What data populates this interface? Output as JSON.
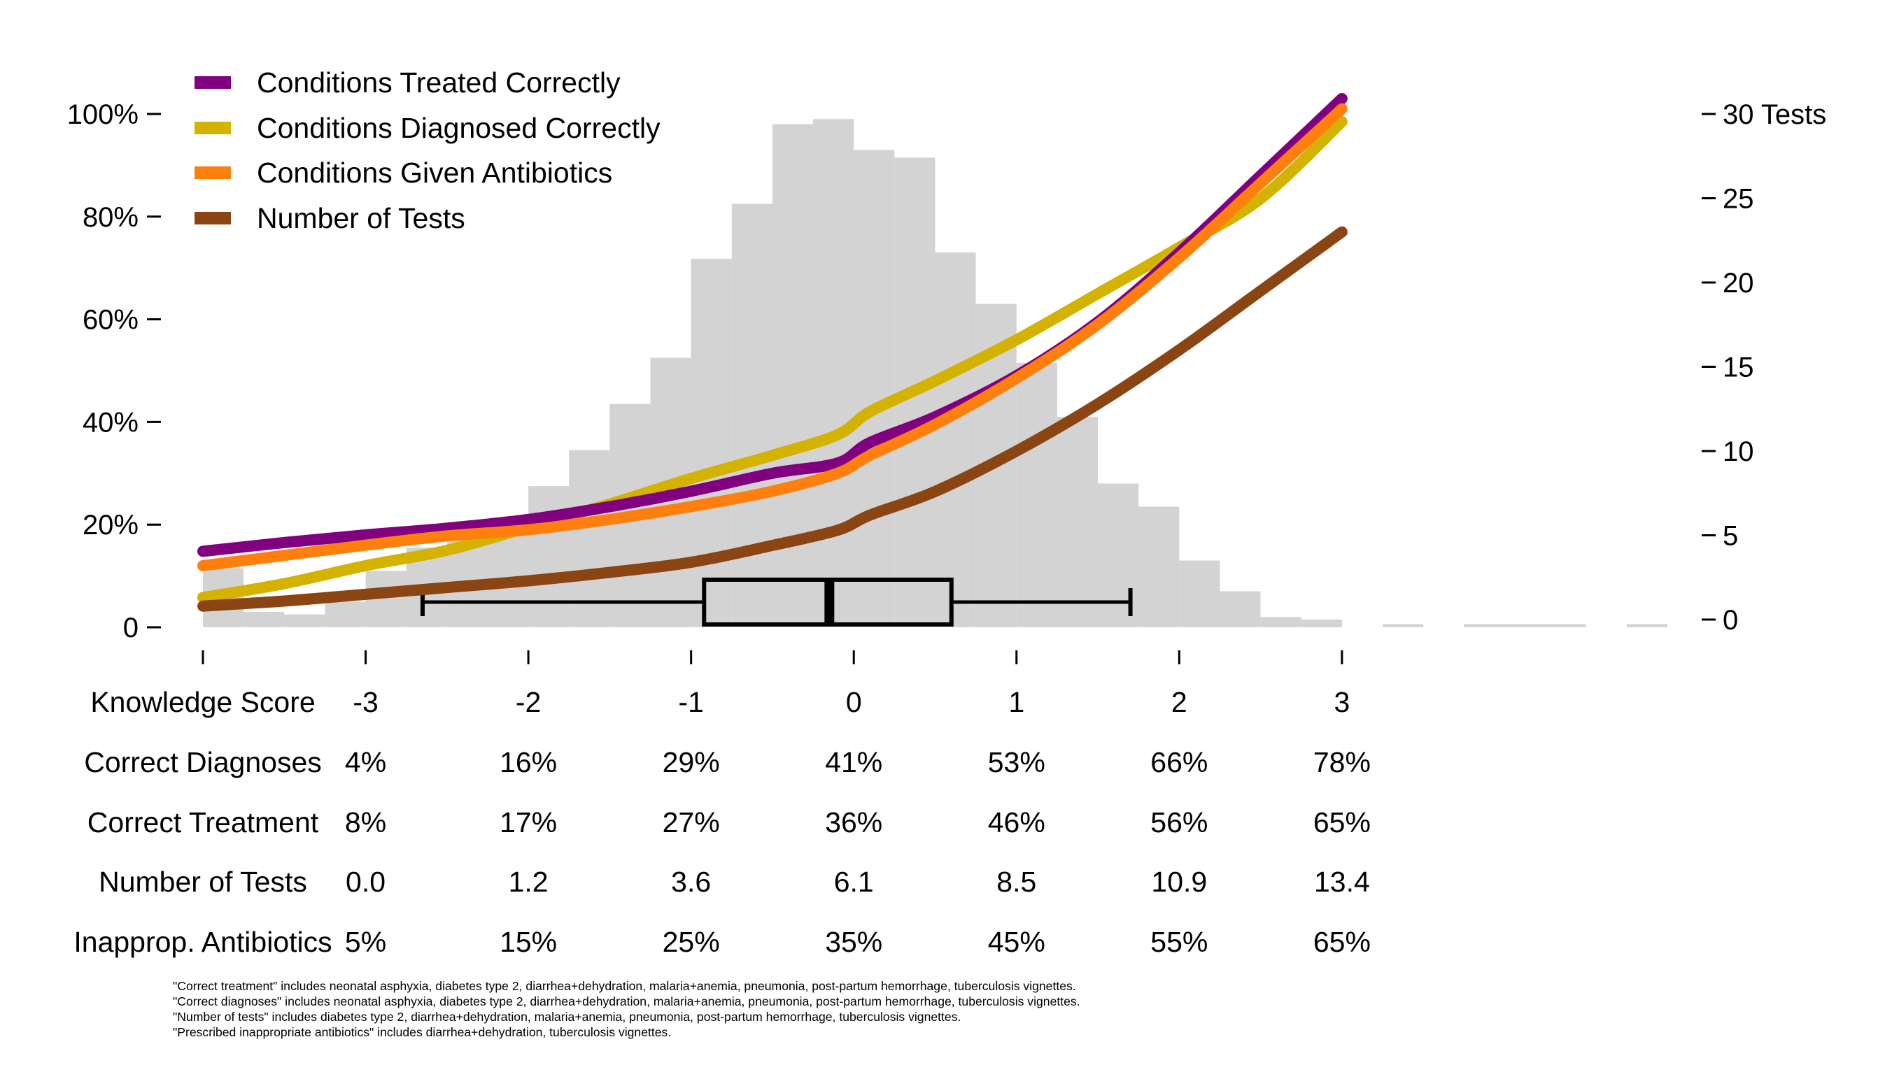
{
  "colors": {
    "treated": "#800080",
    "diagnosed": "#D4B200",
    "antibiotics": "#FF7F0E",
    "tests": "#8B4513",
    "histogram": "#D3D3D3",
    "boxplot": "#000000"
  },
  "chart_data": {
    "type": "line",
    "title": "",
    "xlabel": "Knowledge Score",
    "xlim": [
      -4,
      5
    ],
    "ylim_left": [
      0,
      100
    ],
    "ylim_right": [
      0,
      30
    ],
    "left_ticks": [
      "0",
      "20%",
      "40%",
      "60%",
      "80%",
      "100%"
    ],
    "left_tick_values": [
      0,
      20,
      40,
      60,
      80,
      100
    ],
    "right_ticks": [
      "0",
      "5",
      "10",
      "15",
      "20",
      "25",
      "30 Tests"
    ],
    "right_tick_values": [
      0,
      5,
      10,
      15,
      20,
      25,
      30
    ],
    "x_ticks": [
      "",
      "-3",
      "-2",
      "-1",
      "0",
      "1",
      "2",
      "3"
    ],
    "x_tick_values": [
      -4,
      -3,
      -2,
      -1,
      0,
      1,
      2,
      3
    ],
    "legend": {
      "position": "top-left",
      "entries": [
        "Conditions Treated Correctly",
        "Conditions Diagnosed Correctly",
        "Conditions Given Antibiotics",
        "Number of Tests"
      ]
    },
    "histogram": {
      "bin_width": 0.25,
      "bin_starts": [
        -4.0,
        -3.75,
        -3.5,
        -3.25,
        -3.0,
        -2.75,
        -2.5,
        -2.25,
        -2.0,
        -1.75,
        -1.5,
        -1.25,
        -1.0,
        -0.75,
        -0.5,
        -0.25,
        0.0,
        0.25,
        0.5,
        0.75,
        1.0,
        1.25,
        1.5,
        1.75,
        2.0,
        2.25,
        2.5,
        2.75,
        3.25,
        3.75,
        4.0,
        4.25,
        4.75
      ],
      "heights_percent": [
        11.5,
        3.0,
        2.5,
        5.0,
        11.0,
        15.5,
        17.5,
        21.0,
        27.5,
        34.5,
        43.5,
        52.5,
        71.8,
        82.5,
        98.0,
        99.0,
        93.0,
        91.5,
        73.0,
        63.0,
        51.5,
        41.0,
        28.0,
        23.5,
        13.0,
        7.0,
        2.0,
        1.5,
        0.6,
        0.6,
        0.6,
        0.6,
        0.6
      ]
    },
    "boxplot": {
      "whisker_low": -2.65,
      "q1": -0.92,
      "median": -0.15,
      "q3": 0.6,
      "whisker_high": 1.7
    },
    "series": [
      {
        "name": "Conditions Treated Correctly",
        "axis": "left",
        "x": [
          -4.0,
          -3.5,
          -3.0,
          -2.5,
          -2.0,
          -1.5,
          -1.0,
          -0.5,
          -0.1,
          0.1,
          0.5,
          1.0,
          1.5,
          2.0,
          2.5,
          3.0
        ],
        "y": [
          14.8,
          16.5,
          18.0,
          19.3,
          21.0,
          23.5,
          26.5,
          30.0,
          32.0,
          36.0,
          41.0,
          49.0,
          59.5,
          73.0,
          88.0,
          103.0
        ]
      },
      {
        "name": "Conditions Diagnosed Correctly",
        "axis": "left",
        "x": [
          -4.0,
          -3.5,
          -3.0,
          -2.5,
          -2.0,
          -1.5,
          -1.0,
          -0.5,
          -0.1,
          0.1,
          0.5,
          1.0,
          1.5,
          2.0,
          2.5,
          3.0
        ],
        "y": [
          5.8,
          8.5,
          12.0,
          15.0,
          19.5,
          24.0,
          29.0,
          33.5,
          37.5,
          42.0,
          48.0,
          56.0,
          65.0,
          74.0,
          83.5,
          98.5
        ]
      },
      {
        "name": "Conditions Given Antibiotics",
        "axis": "left",
        "x": [
          -4.0,
          -3.5,
          -3.0,
          -2.5,
          -2.0,
          -1.5,
          -1.0,
          -0.5,
          -0.1,
          0.1,
          0.5,
          1.0,
          1.5,
          2.0,
          2.5,
          3.0
        ],
        "y": [
          12.0,
          14.0,
          16.0,
          17.8,
          19.0,
          21.0,
          23.5,
          26.5,
          30.0,
          33.5,
          39.5,
          48.5,
          59.0,
          72.0,
          86.5,
          101.0
        ]
      },
      {
        "name": "Number of Tests",
        "axis": "right",
        "x": [
          -4.0,
          -3.5,
          -3.0,
          -2.5,
          -2.0,
          -1.5,
          -1.0,
          -0.5,
          -0.1,
          0.1,
          0.5,
          1.0,
          1.5,
          2.0,
          2.5,
          3.0
        ],
        "y": [
          0.8,
          1.1,
          1.5,
          1.9,
          2.3,
          2.8,
          3.4,
          4.4,
          5.3,
          6.2,
          7.6,
          10.0,
          12.8,
          16.0,
          19.5,
          23.0
        ]
      }
    ],
    "table": {
      "columns": [
        "-3",
        "-2",
        "-1",
        "0",
        "1",
        "2",
        "3"
      ],
      "rows": [
        {
          "label": "Knowledge Score",
          "values": [
            "-3",
            "-2",
            "-1",
            "0",
            "1",
            "2",
            "3"
          ]
        },
        {
          "label": "Correct Diagnoses",
          "values": [
            "4%",
            "16%",
            "29%",
            "41%",
            "53%",
            "66%",
            "78%"
          ]
        },
        {
          "label": "Correct Treatment",
          "values": [
            "8%",
            "17%",
            "27%",
            "36%",
            "46%",
            "56%",
            "65%"
          ]
        },
        {
          "label": "Number of Tests",
          "values": [
            "0.0",
            "1.2",
            "3.6",
            "6.1",
            "8.5",
            "10.9",
            "13.4"
          ]
        },
        {
          "label": "Inapprop. Antibiotics",
          "values": [
            "5%",
            "15%",
            "25%",
            "35%",
            "45%",
            "55%",
            "65%"
          ]
        }
      ]
    }
  },
  "footnotes": [
    "\"Correct treatment\" includes neonatal asphyxia, diabetes type 2, diarrhea+dehydration, malaria+anemia, pneumonia, post-partum hemorrhage, tuberculosis vignettes.",
    "\"Correct diagnoses\" includes neonatal asphyxia, diabetes type 2, diarrhea+dehydration, malaria+anemia, pneumonia, post-partum hemorrhage, tuberculosis vignettes.",
    "\"Number of tests\" includes diabetes type 2, diarrhea+dehydration, malaria+anemia, pneumonia, post-partum hemorrhage, tuberculosis vignettes.",
    "\"Prescribed inappropriate antibiotics\" includes diarrhea+dehydration, tuberculosis vignettes."
  ]
}
